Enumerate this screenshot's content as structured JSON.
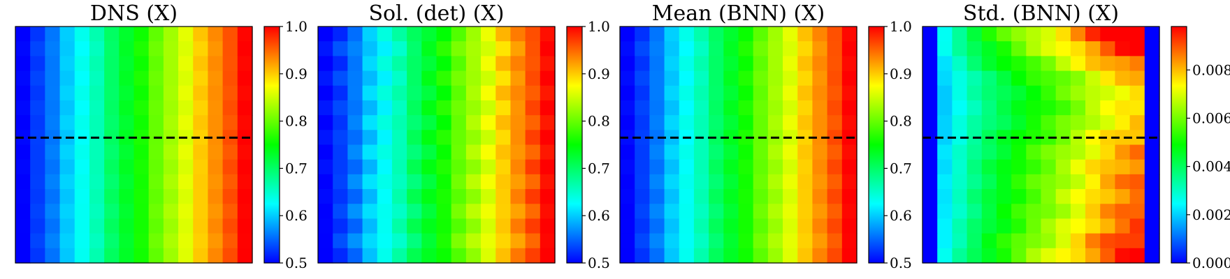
{
  "figure": {
    "colormap": [
      "#0000ff",
      "#0080ff",
      "#00ffff",
      "#00ff80",
      "#00ff00",
      "#80ff00",
      "#ffff00",
      "#ff8000",
      "#ff0000"
    ],
    "dashed_line_color": "#000000"
  },
  "chart_data": [
    {
      "type": "heatmap",
      "title": "DNS (X)",
      "colorbar": {
        "range": [
          0.5,
          1.0
        ],
        "ticks": [
          0.5,
          0.6,
          0.7,
          0.8,
          0.9,
          1.0
        ],
        "tick_labels": [
          "0.5",
          "0.6",
          "0.7",
          "0.8",
          "0.9",
          "1.0"
        ]
      },
      "grid": {
        "cols": 16,
        "rows": 16
      },
      "column_values": [
        0.5,
        0.53,
        0.56,
        0.6,
        0.63,
        0.66,
        0.7,
        0.73,
        0.76,
        0.8,
        0.83,
        0.86,
        0.9,
        0.93,
        0.96,
        1.0
      ],
      "row_variation": 0.004,
      "dashed_line_row_fraction": 0.47
    },
    {
      "type": "heatmap",
      "title": "Sol. (det) (X)",
      "colorbar": {
        "range": [
          0.5,
          1.0
        ],
        "ticks": [
          0.5,
          0.6,
          0.7,
          0.8,
          0.9,
          1.0
        ],
        "tick_labels": [
          "0.5",
          "0.6",
          "0.7",
          "0.8",
          "0.9",
          "1.0"
        ]
      },
      "grid": {
        "cols": 16,
        "rows": 16
      },
      "column_values": [
        0.5,
        0.53,
        0.56,
        0.6,
        0.63,
        0.66,
        0.7,
        0.73,
        0.76,
        0.8,
        0.83,
        0.86,
        0.9,
        0.93,
        0.96,
        1.0
      ],
      "row_variation": 0.012
    },
    {
      "type": "heatmap",
      "title": "Mean (BNN) (X)",
      "colorbar": {
        "range": [
          0.5,
          1.0
        ],
        "ticks": [
          0.5,
          0.6,
          0.7,
          0.8,
          0.9,
          1.0
        ],
        "tick_labels": [
          "0.5",
          "0.6",
          "0.7",
          "0.8",
          "0.9",
          "1.0"
        ]
      },
      "grid": {
        "cols": 16,
        "rows": 16
      },
      "column_values": [
        0.5,
        0.53,
        0.56,
        0.6,
        0.63,
        0.66,
        0.7,
        0.73,
        0.76,
        0.8,
        0.83,
        0.86,
        0.9,
        0.93,
        0.96,
        1.0
      ],
      "row_variation": 0.006,
      "dashed_line_row_fraction": 0.47
    },
    {
      "type": "heatmap",
      "title": "Std. (BNN) (X)",
      "colorbar": {
        "range": [
          0.0,
          0.0098
        ],
        "ticks": [
          0.0,
          0.002,
          0.004,
          0.006,
          0.008
        ],
        "tick_labels": [
          "0.000",
          "0.002",
          "0.004",
          "0.006",
          "0.008"
        ]
      },
      "grid": {
        "cols": 16,
        "rows": 16
      },
      "column_profile": [
        0.0,
        0.0023,
        0.0031,
        0.0038,
        0.0044,
        0.0049,
        0.0054,
        0.0059,
        0.0063,
        0.0068,
        0.0073,
        0.0079,
        0.0084,
        0.0088,
        0.0091,
        0.0
      ],
      "row_profile": [
        1.15,
        1.08,
        0.98,
        0.88,
        0.85,
        0.84,
        0.86,
        0.9,
        0.93,
        0.95,
        0.96,
        0.97,
        0.98,
        1.0,
        1.05,
        1.08
      ],
      "dashed_line_row_fraction": 0.47
    }
  ]
}
